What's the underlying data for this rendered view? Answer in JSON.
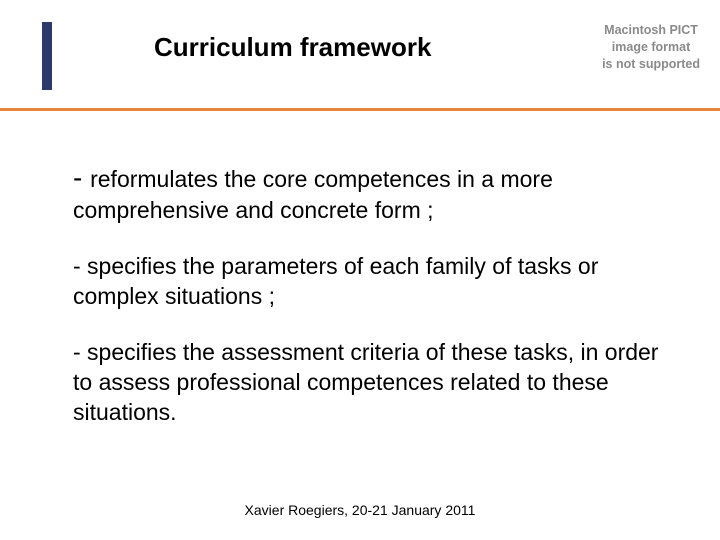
{
  "header": {
    "title": "Curriculum framework",
    "notice_line1": "Macintosh PICT",
    "notice_line2": "image format",
    "notice_line3": "is not supported",
    "vertical_bar_color": "#2a3a6a",
    "divider_color": "#e7863a"
  },
  "content": {
    "bullets": [
      "reformulates the core competences in a more comprehensive and concrete form ;",
      "- specifies the parameters of each family of tasks or complex situations ;",
      "- specifies the assessment criteria of these tasks, in order to assess professional competences related to these situations."
    ],
    "first_dash": "- "
  },
  "footer": {
    "text": "Xavier Roegiers, 20-21 January 2011"
  },
  "typography": {
    "title_fontsize": 26,
    "body_fontsize": 23,
    "footer_fontsize": 14,
    "notice_fontsize": 12.5
  },
  "colors": {
    "background": "#ffffff",
    "text": "#000000",
    "notice_text": "#8a8a8a"
  }
}
